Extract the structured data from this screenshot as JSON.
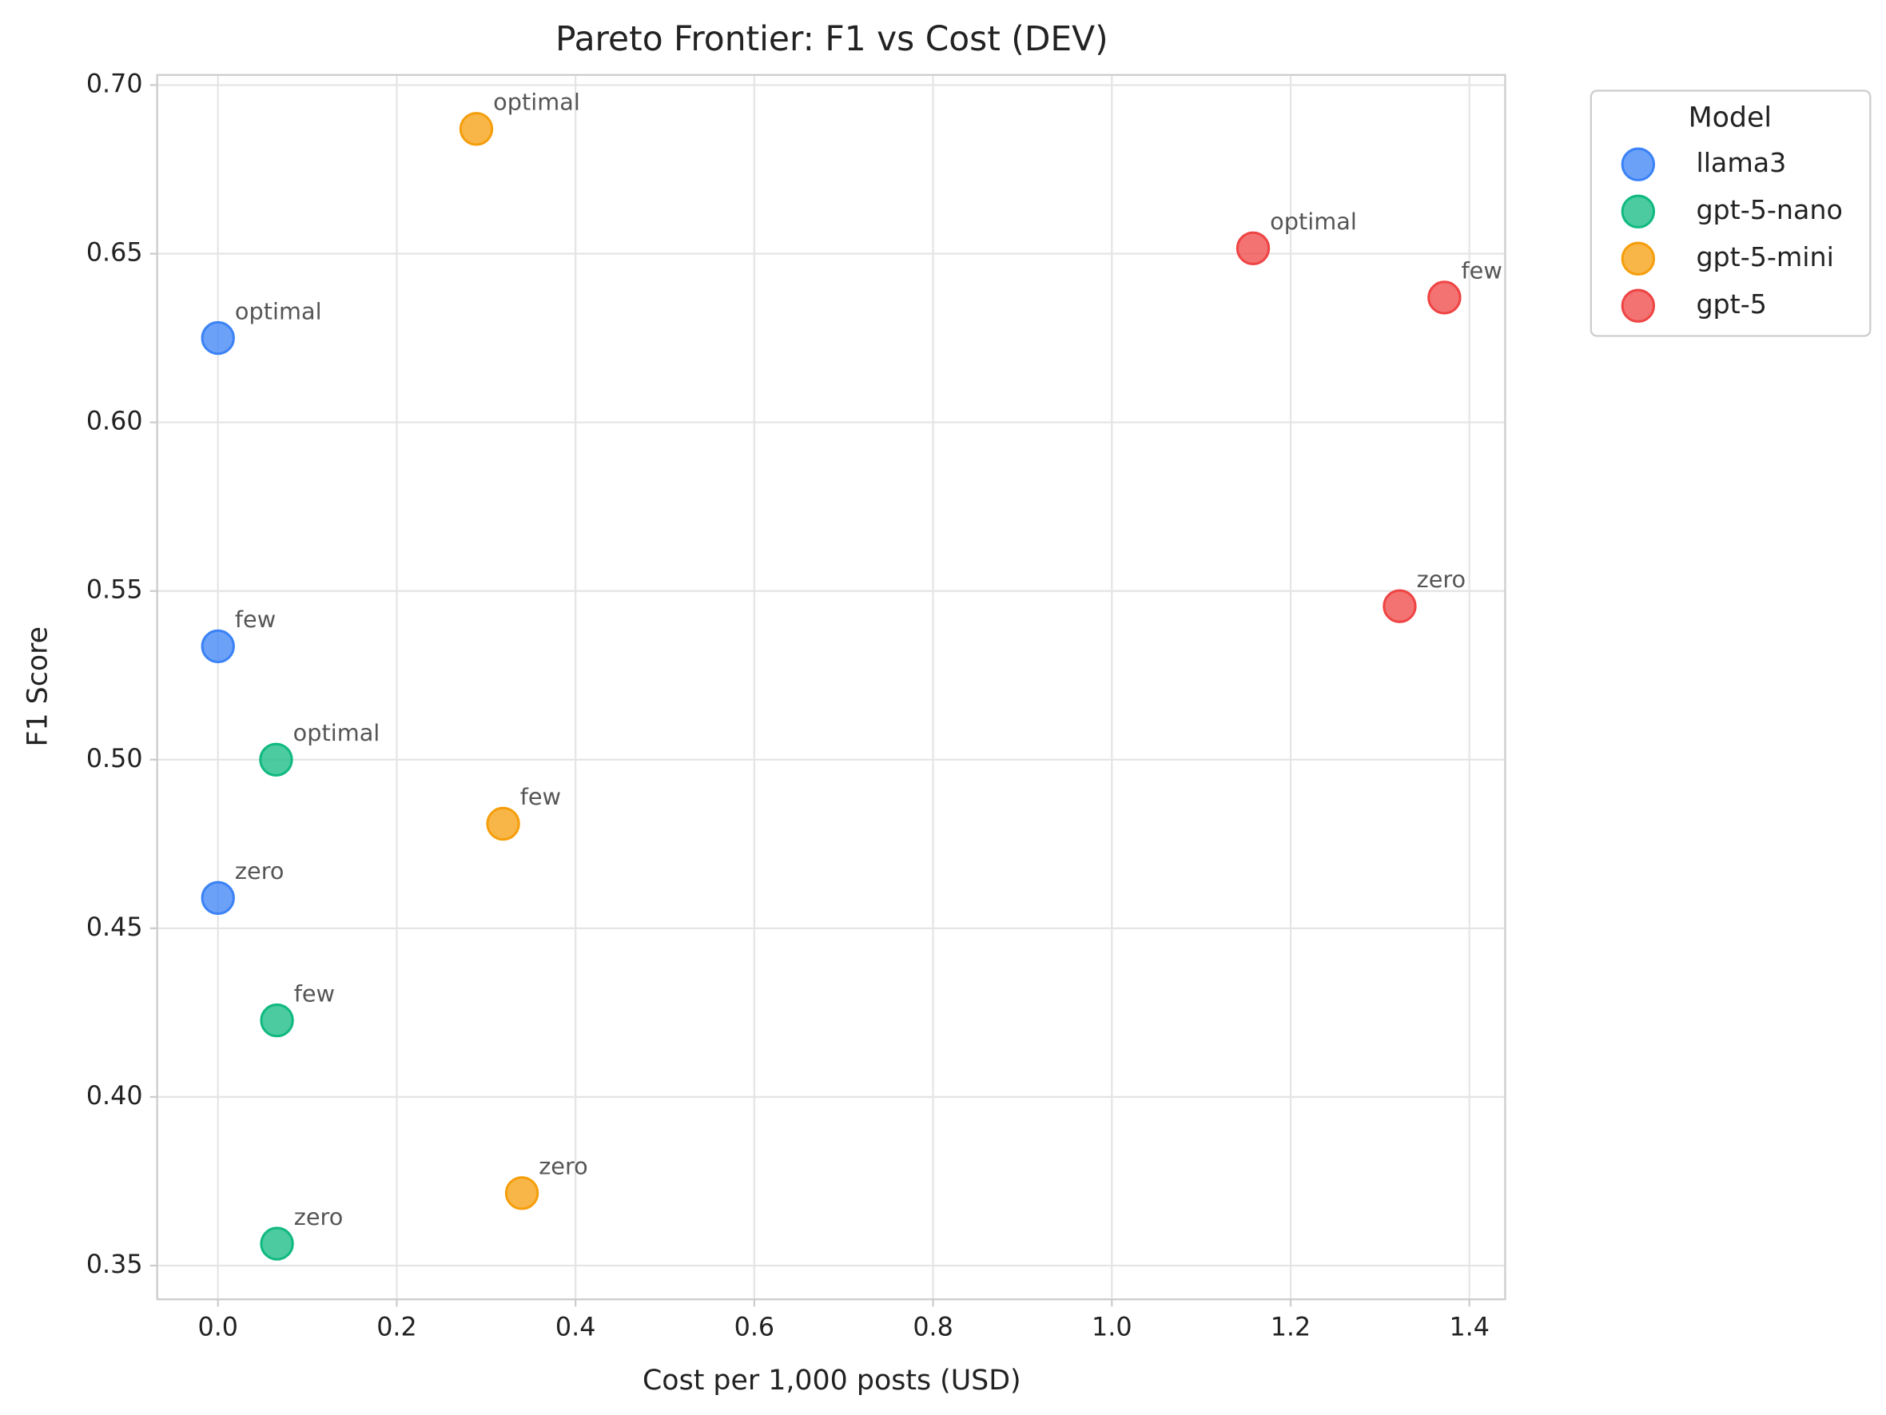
{
  "chart_data": {
    "type": "scatter",
    "title": "Pareto Frontier: F1 vs Cost (DEV)",
    "x_label": "Cost per 1,000 posts (USD)",
    "y_label": "F1 Score",
    "legend_title": "Model",
    "legend_position": "outside-upper-right",
    "grid": true,
    "xlim": [
      -0.068,
      1.44
    ],
    "ylim": [
      0.34,
      0.703
    ],
    "xticks": [
      {
        "value": 0,
        "label": "0.0"
      },
      0.2,
      0.4,
      0.6,
      0.8,
      {
        "value": 1,
        "label": "1.0"
      },
      1.2,
      1.4
    ],
    "yticks": [
      0.35,
      {
        "value": 0.4,
        "label": "0.40"
      },
      0.45,
      {
        "value": 0.5,
        "label": "0.50"
      },
      0.55,
      {
        "value": 0.6,
        "label": "0.60"
      },
      0.65,
      {
        "value": 0.7,
        "label": "0.70"
      }
    ],
    "series": [
      {
        "name": "llama3",
        "color": "#3b82f6",
        "x": [
          0,
          0,
          0
        ],
        "values": [
          0.625,
          0.5336,
          0.459
        ],
        "point_labels": [
          "optimal",
          "few",
          "zero"
        ]
      },
      {
        "name": "gpt-5-nano",
        "color": "#10b981",
        "x": [
          0.065,
          0.066,
          0.066
        ],
        "values": [
          0.5,
          0.4227,
          0.3565
        ],
        "point_labels": [
          "optimal",
          "few",
          "zero"
        ]
      },
      {
        "name": "gpt-5-mini",
        "color": "#f59e0b",
        "x": [
          0.289,
          0.319,
          0.34
        ],
        "values": [
          0.687,
          0.481,
          0.3715
        ],
        "point_labels": [
          "optimal",
          "few",
          "zero"
        ]
      },
      {
        "name": "gpt-5",
        "color": "#ef4444",
        "x": [
          1.158,
          1.372,
          1.322
        ],
        "values": [
          0.6516,
          0.637,
          0.5455
        ],
        "point_labels": [
          "optimal",
          "few",
          "zero"
        ]
      }
    ]
  }
}
